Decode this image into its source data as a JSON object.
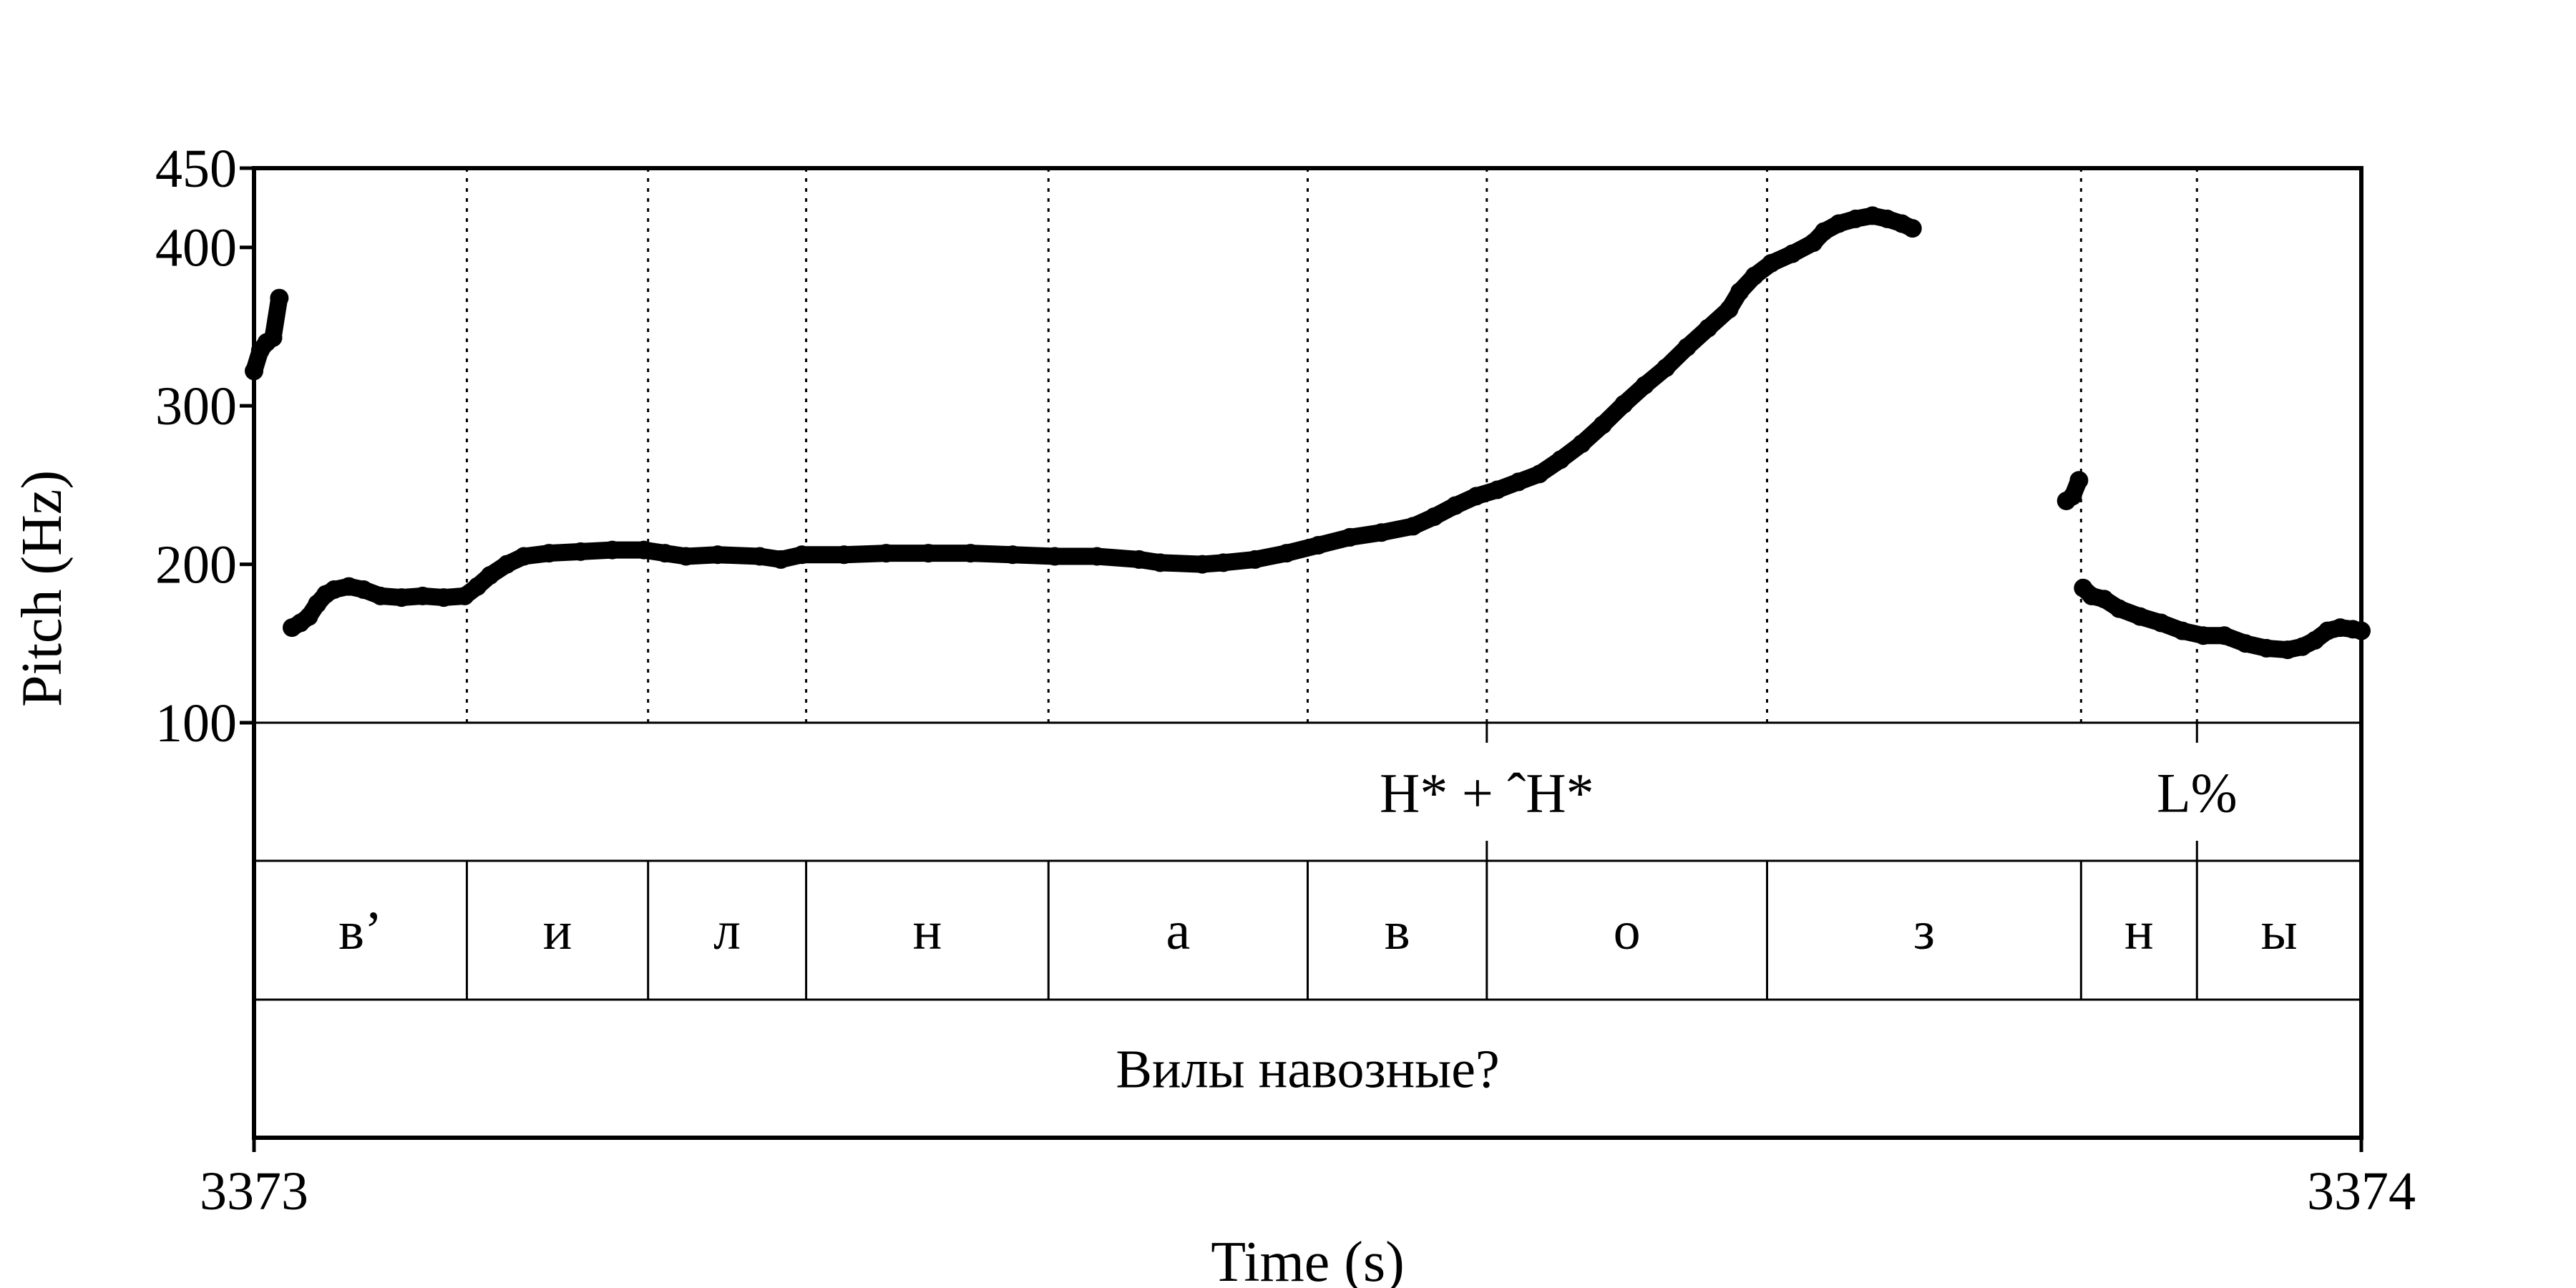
{
  "chart_data": {
    "type": "scatter",
    "title": "",
    "xlabel": "Time (s)",
    "ylabel": "Pitch (Hz)",
    "xlim": [
      3373,
      3374
    ],
    "ylim": [
      100,
      450
    ],
    "x_tick_labels": [
      "3373",
      "3374"
    ],
    "y_ticks": [
      100,
      200,
      300,
      400,
      450
    ],
    "grid": false,
    "series": [
      {
        "color": "#000000",
        "points": [
          [
            3373.0,
            322
          ],
          [
            3373.003,
            335
          ],
          [
            3373.006,
            340
          ],
          [
            3373.009,
            343
          ],
          [
            3373.012,
            368
          ],
          [
            3373.018,
            160
          ],
          [
            3373.022,
            163
          ],
          [
            3373.026,
            167
          ],
          [
            3373.03,
            175
          ],
          [
            3373.034,
            181
          ],
          [
            3373.038,
            184
          ],
          [
            3373.045,
            186
          ],
          [
            3373.052,
            184
          ],
          [
            3373.06,
            180
          ],
          [
            3373.07,
            179
          ],
          [
            3373.08,
            180
          ],
          [
            3373.09,
            179
          ],
          [
            3373.1,
            180
          ],
          [
            3373.106,
            186
          ],
          [
            3373.112,
            193
          ],
          [
            3373.12,
            200
          ],
          [
            3373.128,
            205
          ],
          [
            3373.14,
            207
          ],
          [
            3373.155,
            208
          ],
          [
            3373.17,
            209
          ],
          [
            3373.185,
            209
          ],
          [
            3373.195,
            207
          ],
          [
            3373.205,
            205
          ],
          [
            3373.22,
            206
          ],
          [
            3373.24,
            205
          ],
          [
            3373.25,
            203
          ],
          [
            3373.26,
            206
          ],
          [
            3373.28,
            206
          ],
          [
            3373.3,
            207
          ],
          [
            3373.32,
            207
          ],
          [
            3373.34,
            207
          ],
          [
            3373.36,
            206
          ],
          [
            3373.38,
            205
          ],
          [
            3373.4,
            205
          ],
          [
            3373.42,
            203
          ],
          [
            3373.43,
            201
          ],
          [
            3373.45,
            200
          ],
          [
            3373.46,
            201
          ],
          [
            3373.475,
            203
          ],
          [
            3373.49,
            207
          ],
          [
            3373.505,
            212
          ],
          [
            3373.52,
            217
          ],
          [
            3373.535,
            220
          ],
          [
            3373.55,
            224
          ],
          [
            3373.56,
            230
          ],
          [
            3373.57,
            237
          ],
          [
            3373.58,
            243
          ],
          [
            3373.59,
            247
          ],
          [
            3373.6,
            252
          ],
          [
            3373.61,
            257
          ],
          [
            3373.62,
            266
          ],
          [
            3373.63,
            276
          ],
          [
            3373.64,
            288
          ],
          [
            3373.65,
            301
          ],
          [
            3373.66,
            313
          ],
          [
            3373.67,
            324
          ],
          [
            3373.68,
            337
          ],
          [
            3373.69,
            349
          ],
          [
            3373.7,
            361
          ],
          [
            3373.705,
            372
          ],
          [
            3373.712,
            382
          ],
          [
            3373.72,
            390
          ],
          [
            3373.73,
            396
          ],
          [
            3373.74,
            403
          ],
          [
            3373.745,
            410
          ],
          [
            3373.752,
            415
          ],
          [
            3373.76,
            418
          ],
          [
            3373.768,
            420
          ],
          [
            3373.775,
            418
          ],
          [
            3373.782,
            415
          ],
          [
            3373.787,
            412
          ],
          [
            3373.86,
            240
          ],
          [
            3373.863,
            243
          ],
          [
            3373.866,
            253
          ],
          [
            3373.868,
            185
          ],
          [
            3373.872,
            180
          ],
          [
            3373.878,
            178
          ],
          [
            3373.885,
            172
          ],
          [
            3373.895,
            167
          ],
          [
            3373.905,
            163
          ],
          [
            3373.915,
            158
          ],
          [
            3373.925,
            155
          ],
          [
            3373.935,
            155
          ],
          [
            3373.945,
            150
          ],
          [
            3373.955,
            147
          ],
          [
            3373.965,
            146
          ],
          [
            3373.972,
            148
          ],
          [
            3373.978,
            152
          ],
          [
            3373.984,
            158
          ],
          [
            3373.99,
            160
          ],
          [
            3373.996,
            159
          ],
          [
            3374.0,
            158
          ]
        ]
      }
    ],
    "interval_boundaries": [
      3373.101,
      3373.187,
      3373.262,
      3373.377,
      3373.5,
      3373.585,
      3373.718,
      3373.867,
      3373.922
    ],
    "segment_tier": [
      {
        "label": "в’",
        "start": 3373.0,
        "end": 3373.101
      },
      {
        "label": "и",
        "start": 3373.101,
        "end": 3373.187
      },
      {
        "label": "л",
        "start": 3373.187,
        "end": 3373.262
      },
      {
        "label": "н",
        "start": 3373.262,
        "end": 3373.377
      },
      {
        "label": "а",
        "start": 3373.377,
        "end": 3373.5
      },
      {
        "label": "в",
        "start": 3373.5,
        "end": 3373.585
      },
      {
        "label": "о",
        "start": 3373.585,
        "end": 3373.718
      },
      {
        "label": "з",
        "start": 3373.718,
        "end": 3373.867
      },
      {
        "label": "н",
        "start": 3373.867,
        "end": 3373.922
      },
      {
        "label": "ы",
        "start": 3373.922,
        "end": 3374.0
      }
    ],
    "tone_tier": [
      {
        "label": "H* + ˆH*",
        "time": 3373.585
      },
      {
        "label": "L%",
        "time": 3373.922
      }
    ],
    "sentence_tier": {
      "label": "Вилы навозные?"
    }
  }
}
